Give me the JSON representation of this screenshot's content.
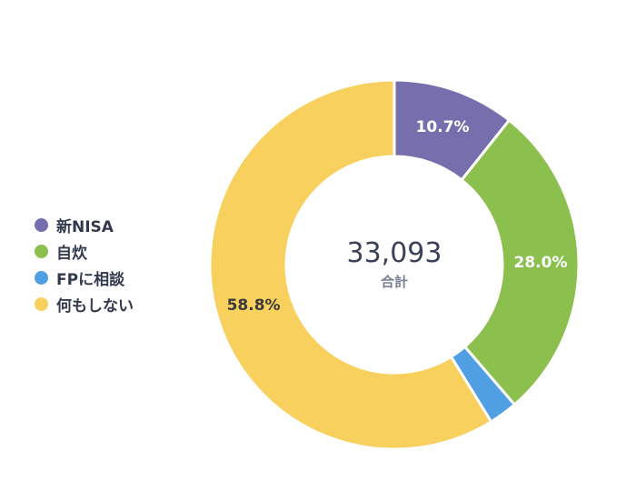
{
  "chart_data": {
    "type": "pie",
    "donut": true,
    "total": "33,093",
    "total_label": "合計",
    "legend_position": "left",
    "slices": [
      {
        "name": "新NISA",
        "value": 10.7,
        "label": "10.7%",
        "color": "#7570ad",
        "label_color": "#ffffff"
      },
      {
        "name": "自炊",
        "value": 28.0,
        "label": "28.0%",
        "color": "#8bbf4e",
        "label_color": "#ffffff"
      },
      {
        "name": "FPに相談",
        "value": 2.5,
        "label": "",
        "color": "#4f9fe2",
        "label_color": "#ffffff"
      },
      {
        "name": "何もしない",
        "value": 58.8,
        "label": "58.8%",
        "color": "#f7d05e",
        "label_color": "#3b3b3b"
      }
    ]
  }
}
